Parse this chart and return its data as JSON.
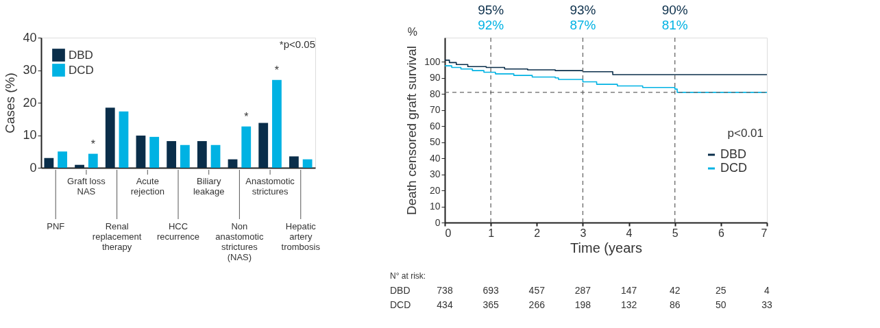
{
  "chart_data": [
    {
      "type": "bar",
      "ylabel": "Cases (%)",
      "ylim": [
        0,
        40
      ],
      "yticks": [
        0,
        10,
        20,
        30,
        40
      ],
      "grid": false,
      "legend": "top left",
      "categories": [
        "PNF",
        "Graft loss\nNAS",
        "Renal\nreplacement\ntherapy",
        "Acute\nrejection",
        "HCC\nrecurrence",
        "Biliary\nleakage",
        "Non\nanastomotic\nstrictures\n(NAS)",
        "Anastomotic\nstrictures",
        "Hepatic\nartery\ntrombosis"
      ],
      "series": [
        {
          "name": "DBD",
          "color": "#0a2e4a",
          "values": [
            3.0,
            0.9,
            18.5,
            9.9,
            8.2,
            8.2,
            2.6,
            13.8,
            3.5
          ]
        },
        {
          "name": "DCD",
          "color": "#00b2e3",
          "values": [
            5.0,
            4.3,
            17.3,
            9.5,
            7.0,
            7.0,
            12.7,
            27.0,
            2.6
          ]
        }
      ],
      "annotations": [
        "*p<0.05",
        {
          "text": "*",
          "x": "Graft loss\nNAS",
          "y": 4.3
        },
        {
          "text": "*",
          "x": "Non\nanastomotic\nstrictures\n(NAS)",
          "y": 12.7
        },
        {
          "text": "*",
          "x": "Anastomotic\nstrictures",
          "y": 27.0
        }
      ]
    },
    {
      "type": "step",
      "xlabel": "Time (years",
      "ylabel": "Death censored graft survival",
      "xlim": [
        0,
        7
      ],
      "xticks": [
        0,
        1,
        2,
        3,
        4,
        5,
        6,
        7
      ],
      "ylim": [
        0,
        115
      ],
      "yticks": [
        0,
        10,
        20,
        30,
        40,
        50,
        60,
        70,
        80,
        90,
        100
      ],
      "grid": false,
      "legend": "right",
      "series": [
        {
          "name": "DBD",
          "color": "#0a2e4a",
          "x": [
            0,
            0.1,
            0.25,
            0.5,
            0.9,
            1.3,
            1.8,
            2.4,
            3.0,
            3.65,
            7.0
          ],
          "values": [
            101,
            99.5,
            98.3,
            97,
            96.5,
            95.5,
            95,
            94.5,
            93.8,
            92,
            92
          ]
        },
        {
          "name": "DCD",
          "color": "#00b2e3",
          "x": [
            0,
            0.15,
            0.35,
            0.6,
            0.85,
            1.1,
            1.5,
            1.9,
            2.4,
            2.47,
            3.0,
            3.3,
            3.75,
            4.3,
            5.0,
            5.05,
            7.0
          ],
          "values": [
            97.5,
            96.5,
            95.5,
            94.5,
            93.5,
            92.5,
            91.5,
            90.5,
            90,
            89,
            87.5,
            86,
            85,
            84,
            83,
            81,
            81
          ]
        }
      ],
      "ref_lines": [
        {
          "axis": "x",
          "value": 1,
          "line_style": "dashed",
          "color": "#666666"
        },
        {
          "axis": "x",
          "value": 3,
          "line_style": "dashed",
          "color": "#666666"
        },
        {
          "axis": "x",
          "value": 5,
          "line_style": "dashed",
          "color": "#666666"
        },
        {
          "axis": "y",
          "value": 81,
          "line_style": "dashed",
          "color": "#666666"
        }
      ],
      "annotations": [
        "p<0.01",
        "%",
        "N° at risk:",
        "DBD",
        "DCD",
        "95%",
        "92%",
        "93%",
        "87%",
        "90%",
        "81%",
        "738",
        "693",
        "457",
        "287",
        "147",
        "42",
        "25",
        "4",
        "434",
        "365",
        "266",
        "198",
        "132",
        "86",
        "50",
        "33"
      ]
    }
  ]
}
